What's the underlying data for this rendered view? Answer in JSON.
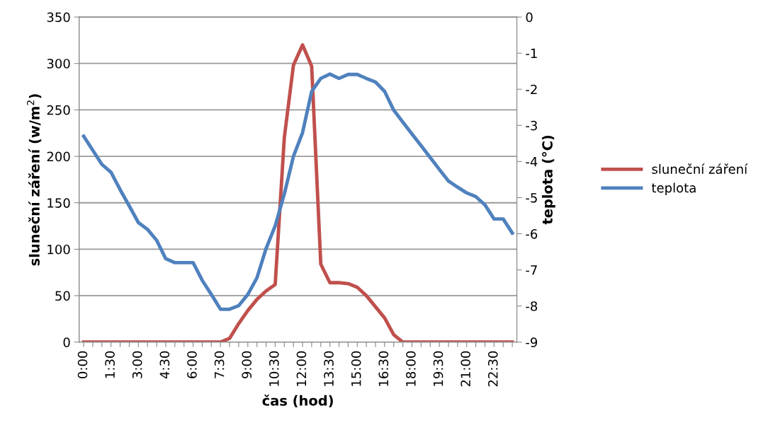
{
  "chart_data": {
    "type": "line",
    "xlabel": "čas (hod)",
    "ylabel": "sluneční záření (w/m$^{2}$)",
    "y2label": "teplota (°C)",
    "categories": [
      "0:00",
      null,
      null,
      "1:30",
      null,
      null,
      "3:00",
      null,
      null,
      "4:30",
      null,
      null,
      "6:00",
      null,
      null,
      "7:30",
      null,
      null,
      "9:00",
      null,
      null,
      "10:30",
      null,
      null,
      "12:00",
      null,
      null,
      "13:30",
      null,
      null,
      "15:00",
      null,
      null,
      "16:30",
      null,
      null,
      "18:00",
      null,
      null,
      "19:30",
      null,
      null,
      "21:00",
      null,
      null,
      "22:30",
      null,
      null
    ],
    "series": [
      {
        "name": "sluneční záření",
        "color": "#c0504d",
        "values": [
          0,
          0,
          0,
          0,
          0,
          0,
          0,
          0,
          0,
          0,
          0,
          0,
          0,
          0,
          0,
          0,
          4,
          20,
          34,
          46,
          55,
          62,
          220,
          298,
          320,
          297,
          84,
          64,
          64,
          63,
          59,
          50,
          38,
          26,
          8,
          0,
          0,
          0,
          0,
          0,
          0,
          0,
          0,
          0,
          0,
          0,
          0,
          0
        ]
      },
      {
        "name": "teplota",
        "color": "#4f81bd",
        "axis": "y2",
        "values": [
          -3.3,
          -3.69,
          -4.08,
          -4.3,
          -4.78,
          -5.23,
          -5.69,
          -5.88,
          -6.18,
          -6.69,
          -6.8,
          -6.8,
          -6.8,
          -7.29,
          -7.68,
          -8.09,
          -8.09,
          -7.99,
          -7.68,
          -7.22,
          -6.41,
          -5.78,
          -4.9,
          -3.86,
          -3.2,
          -2.06,
          -1.7,
          -1.58,
          -1.7,
          -1.59,
          -1.59,
          -1.7,
          -1.8,
          -2.06,
          -2.58,
          -2.91,
          -3.24,
          -3.56,
          -3.89,
          -4.22,
          -4.54,
          -4.71,
          -4.87,
          -4.97,
          -5.2,
          -5.59,
          -5.59,
          -5.98
        ]
      }
    ],
    "ylim": [
      0,
      350
    ],
    "yticks": [
      0,
      50,
      100,
      150,
      200,
      250,
      300,
      350
    ],
    "y2lim": [
      -9,
      0
    ],
    "y2ticks": [
      -9,
      -8,
      -7,
      -6,
      -5,
      -4,
      -3,
      -2,
      -1,
      0
    ],
    "grid": "y",
    "legend": "right",
    "marker": "none",
    "line_style": "solid"
  }
}
